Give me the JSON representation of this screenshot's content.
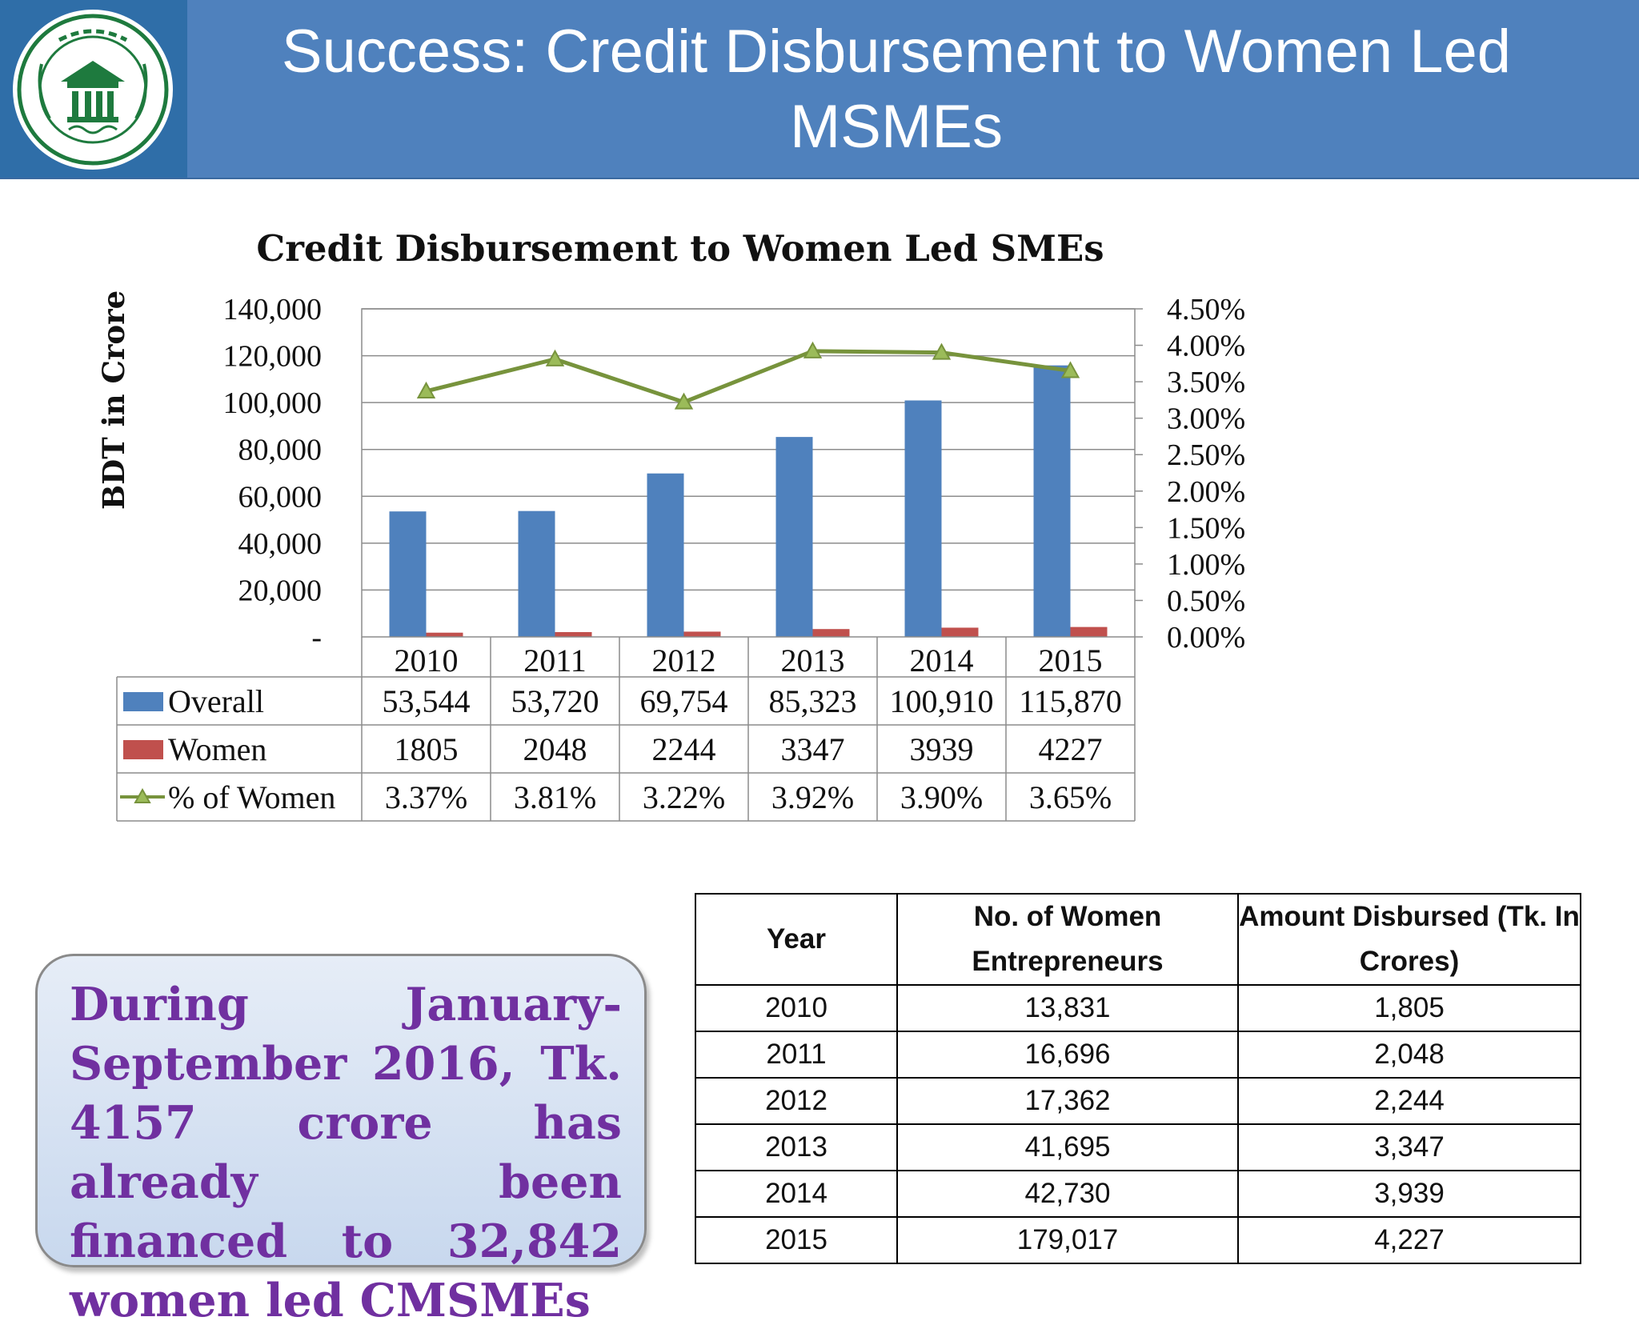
{
  "slide_title": "Success: Credit Disbursement to Women Led MSMEs",
  "logo": {
    "name": "bangladesh-bank-logo",
    "colors": {
      "ring": "#1e7a3e",
      "background": "#ffffff"
    }
  },
  "colors": {
    "header_bg": "#4f81bd",
    "overall": "#4f81bd",
    "women": "#c0504d",
    "pct_line": "#77933c",
    "callout_text": "#7030a0"
  },
  "chart_data": {
    "type": "bar",
    "title": "Credit Disbursement to Women Led SMEs",
    "ylabel": "BDT in Crore",
    "categories": [
      "2010",
      "2011",
      "2012",
      "2013",
      "2014",
      "2015"
    ],
    "ylim": [
      0,
      140000
    ],
    "y2lim": [
      0,
      4.5
    ],
    "yticks": [
      "-",
      "20,000",
      "40,000",
      "60,000",
      "80,000",
      "100,000",
      "120,000",
      "140,000"
    ],
    "y2ticks": [
      "0.00%",
      "0.50%",
      "1.00%",
      "1.50%",
      "2.00%",
      "2.50%",
      "3.00%",
      "3.50%",
      "4.00%",
      "4.50%"
    ],
    "grid": true,
    "legend": "data-table",
    "series": [
      {
        "name": "Overall",
        "type": "bar",
        "axis": "left",
        "color": "#4f81bd",
        "values": [
          53544,
          53720,
          69754,
          85323,
          100910,
          115870
        ],
        "labels": [
          "53,544",
          "53,720",
          "69,754",
          "85,323",
          "100,910",
          "115,870"
        ]
      },
      {
        "name": "Women",
        "type": "bar",
        "axis": "left",
        "color": "#c0504d",
        "values": [
          1805,
          2048,
          2244,
          3347,
          3939,
          4227
        ],
        "labels": [
          "1805",
          "2048",
          "2244",
          "3347",
          "3939",
          "4227"
        ]
      },
      {
        "name": "% of Women",
        "type": "line",
        "axis": "right",
        "color": "#77933c",
        "marker": "triangle",
        "values": [
          3.37,
          3.81,
          3.22,
          3.92,
          3.9,
          3.65
        ],
        "labels": [
          "3.37%",
          "3.81%",
          "3.22%",
          "3.92%",
          "3.90%",
          "3.65%"
        ]
      }
    ]
  },
  "callout": {
    "text": "During January-September 2016, Tk. 4157 crore has already been financed to 32,842 women led CMSMEs"
  },
  "table": {
    "headers": [
      "Year",
      "No. of Women Entrepreneurs",
      "Amount Disbursed (Tk. In Crores)"
    ],
    "rows": [
      [
        "2010",
        "13,831",
        "1,805"
      ],
      [
        "2011",
        "16,696",
        "2,048"
      ],
      [
        "2012",
        "17,362",
        "2,244"
      ],
      [
        "2013",
        "41,695",
        "3,347"
      ],
      [
        "2014",
        "42,730",
        "3,939"
      ],
      [
        "2015",
        "179,017",
        "4,227"
      ]
    ]
  }
}
